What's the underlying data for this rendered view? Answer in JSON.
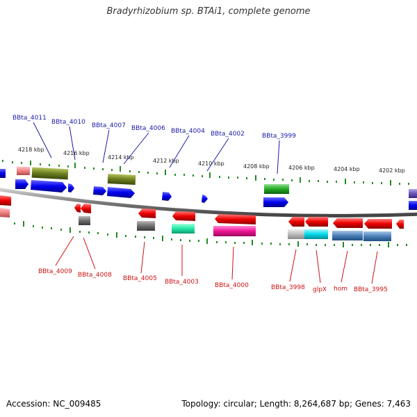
{
  "title": "Bradyrhizobium sp. BTAi1, complete genome",
  "footer": {
    "accession": "Accession: NC_009485",
    "summary": "Topology: circular; Length: 8,264,687 bp; Genes: 7,463"
  },
  "scale_ticks": [
    {
      "label": "4218 kbp"
    },
    {
      "label": "4216 kbp"
    },
    {
      "label": "4214 kbp"
    },
    {
      "label": "4212 kbp"
    },
    {
      "label": "4210 kbp"
    },
    {
      "label": "4208 kbp"
    },
    {
      "label": "4206 kbp"
    },
    {
      "label": "4204 kbp"
    },
    {
      "label": "4202 kbp"
    }
  ],
  "labels_forward": [
    {
      "name": "BBta_4011"
    },
    {
      "name": "BBta_4010"
    },
    {
      "name": "BBta_4007"
    },
    {
      "name": "BBta_4006"
    },
    {
      "name": "BBta_4004"
    },
    {
      "name": "BBta_4002"
    },
    {
      "name": "BBta_3999"
    }
  ],
  "labels_reverse": [
    {
      "name": "BBta_4009"
    },
    {
      "name": "BBta_4008"
    },
    {
      "name": "BBta_4005"
    },
    {
      "name": "BBta_4003"
    },
    {
      "name": "BBta_4000"
    },
    {
      "name": "BBta_3998"
    },
    {
      "name": "glpX"
    },
    {
      "name": "hom"
    },
    {
      "name": "BBta_3995"
    }
  ],
  "colors": {
    "forward_gene": "#0000ee",
    "reverse_gene": "#ee0000",
    "backbone": "#888888",
    "tick": "#228b22",
    "label_forward": "#1a1aa8",
    "label_reverse": "#cc1111"
  }
}
